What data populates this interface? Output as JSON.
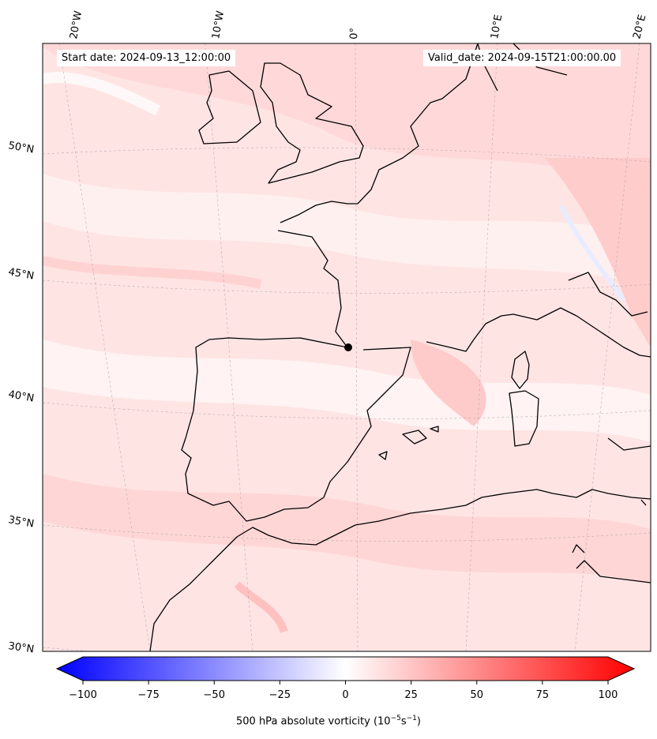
{
  "header": {
    "start_date": "Start date: 2024-09-13_12:00:00",
    "valid_date": "Valid_date: 2024-09-15T21:00:00.00"
  },
  "map": {
    "lon_labels": [
      "20°W",
      "10°W",
      "0°",
      "10°E",
      "20°E"
    ],
    "lat_labels": [
      "50°N",
      "45°N",
      "40°N",
      "35°N",
      "30°N"
    ],
    "marker": "storm-center-dot"
  },
  "colorbar": {
    "title_prefix": "500 hPa absolute vorticity (10",
    "title_exp1": "−5",
    "title_mid": "s",
    "title_exp2": "−1",
    "title_suffix": ")",
    "ticks": [
      "−100",
      "−75",
      "−50",
      "−25",
      "0",
      "25",
      "50",
      "75",
      "100"
    ],
    "range": [
      -100,
      100
    ],
    "colormap": "bwr",
    "color_min": "#0000ff",
    "color_mid": "#ffffff",
    "color_max": "#ff0000"
  }
}
